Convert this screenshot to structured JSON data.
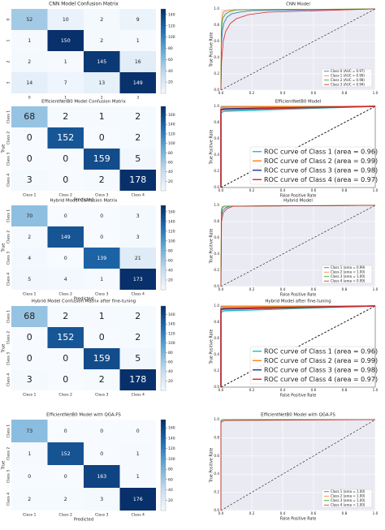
{
  "chart_data": [
    {
      "type": "heatmap",
      "title": "CNN Model Confusion Matrix",
      "xlabel": "",
      "ylabel": "",
      "x_tick_labels": [
        "0",
        "1",
        "2",
        "3"
      ],
      "y_tick_labels": [
        "0",
        "1",
        "2",
        "3"
      ],
      "values": [
        [
          52,
          10,
          2,
          9
        ],
        [
          1,
          150,
          2,
          1
        ],
        [
          2,
          1,
          145,
          16
        ],
        [
          14,
          7,
          13,
          149
        ]
      ],
      "colorbar_ticks": [
        20,
        40,
        60,
        80,
        100,
        120,
        140
      ],
      "color_range": [
        0,
        150
      ]
    },
    {
      "type": "line",
      "title": "CNN Model",
      "xlabel": "",
      "ylabel": "True Positive Rate",
      "x_ticks": [
        "0.0",
        "0.2",
        "0.4",
        "0.6",
        "0.8",
        "1.0"
      ],
      "y_ticks": [
        "0.0",
        "0.2",
        "0.4",
        "0.6",
        "0.8",
        "1.0"
      ],
      "xlim": [
        0,
        1
      ],
      "ylim": [
        0,
        1
      ],
      "grid": true,
      "legend_position": "bottom-right",
      "series": [
        {
          "name": "Class 0 (AUC = 0.97)",
          "color": "#1f77b4",
          "x": [
            0,
            0.003,
            0.01,
            0.02,
            0.04,
            0.07,
            0.12,
            0.2,
            1
          ],
          "y": [
            0,
            0.55,
            0.74,
            0.83,
            0.9,
            0.94,
            0.96,
            0.98,
            1
          ]
        },
        {
          "name": "Class 1 (AUC = 0.99)",
          "color": "#ff7f0e",
          "x": [
            0,
            0.002,
            0.01,
            0.02,
            0.04,
            0.08,
            1
          ],
          "y": [
            0,
            0.8,
            0.93,
            0.97,
            0.98,
            0.99,
            1
          ]
        },
        {
          "name": "Class 2 (AUC = 0.98)",
          "color": "#2ca02c",
          "x": [
            0,
            0.003,
            0.01,
            0.03,
            0.06,
            0.1,
            1
          ],
          "y": [
            0,
            0.7,
            0.88,
            0.94,
            0.97,
            0.99,
            1
          ]
        },
        {
          "name": "Class 3 (AUC = 0.94)",
          "color": "#d62728",
          "x": [
            0,
            0.004,
            0.015,
            0.03,
            0.06,
            0.1,
            0.18,
            0.3,
            1
          ],
          "y": [
            0,
            0.35,
            0.6,
            0.72,
            0.82,
            0.88,
            0.93,
            0.96,
            1
          ]
        }
      ]
    },
    {
      "type": "heatmap",
      "title": "EfficientNetB0 Model Confusion Matrix",
      "xlabel": "Predicted",
      "ylabel": "True",
      "x_tick_labels": [
        "Class 1",
        "Class 2",
        "Class 3",
        "Class 4"
      ],
      "y_tick_labels": [
        "Class 1",
        "Class 2",
        "Class 3",
        "Class 4"
      ],
      "values": [
        [
          68,
          2,
          1,
          2
        ],
        [
          0,
          152,
          0,
          2
        ],
        [
          0,
          0,
          159,
          5
        ],
        [
          3,
          0,
          2,
          178
        ]
      ],
      "colorbar_ticks": [
        20,
        40,
        60,
        80,
        100,
        120,
        140,
        160
      ],
      "color_range": [
        0,
        178
      ]
    },
    {
      "type": "line",
      "title": "EfficientNetB0 Model",
      "xlabel": "False Positive Rate",
      "ylabel": "True Positive Rate",
      "x_ticks": [
        "0.0",
        "0.2",
        "0.4",
        "0.6",
        "0.8",
        "1.0"
      ],
      "y_ticks": [
        "0.0",
        "0.2",
        "0.4",
        "0.6",
        "0.8",
        "1.0"
      ],
      "xlim": [
        0,
        1
      ],
      "ylim": [
        0,
        1
      ],
      "grid": false,
      "legend_position": "bottom-right",
      "series": [
        {
          "name": "ROC curve of Class 1 (area = 0.96)",
          "color": "#17becf",
          "x": [
            0,
            0,
            0.02,
            1
          ],
          "y": [
            0,
            0.92,
            0.94,
            1
          ]
        },
        {
          "name": "ROC curve of Class 2 (area = 0.99)",
          "color": "#ff7f0e",
          "x": [
            0,
            0,
            0.01,
            1
          ],
          "y": [
            0,
            0.98,
            0.99,
            1
          ]
        },
        {
          "name": "ROC curve of Class 3 (area = 0.98)",
          "color": "#1f3a93",
          "x": [
            0,
            0,
            0.015,
            1
          ],
          "y": [
            0,
            0.96,
            0.97,
            1
          ]
        },
        {
          "name": "ROC curve of Class 4 (area = 0.97)",
          "color": "#d62728",
          "x": [
            0,
            0,
            0.02,
            1
          ],
          "y": [
            0,
            0.95,
            0.96,
            1
          ]
        }
      ]
    },
    {
      "type": "heatmap",
      "title": "Hybrid Model Confusion Matrix",
      "xlabel": "Predicted",
      "ylabel": "True",
      "x_tick_labels": [
        "Class 1",
        "Class 2",
        "Class 3",
        "Class 4"
      ],
      "y_tick_labels": [
        "Class 1",
        "Class 2",
        "Class 3",
        "Class 4"
      ],
      "values": [
        [
          70,
          0,
          0,
          3
        ],
        [
          2,
          149,
          0,
          3
        ],
        [
          4,
          0,
          139,
          21
        ],
        [
          5,
          4,
          1,
          173
        ]
      ],
      "colorbar_ticks": [
        20,
        40,
        60,
        80,
        100,
        120,
        140,
        160
      ],
      "color_range": [
        0,
        173
      ]
    },
    {
      "type": "line",
      "title": "Hybrid Model",
      "xlabel": "False Positive Rate",
      "ylabel": "True Positive Rate",
      "x_ticks": [
        "0.0",
        "0.2",
        "0.4",
        "0.6",
        "0.8",
        "1.0"
      ],
      "y_ticks": [
        "0.0",
        "0.2",
        "0.4",
        "0.6",
        "0.8",
        "1.0"
      ],
      "xlim": [
        0,
        1
      ],
      "ylim": [
        0,
        1
      ],
      "grid": true,
      "legend_position": "bottom-right",
      "series": [
        {
          "name": "Class 1 (area = 0.99)",
          "color": "#1f77b4",
          "x": [
            0,
            0.003,
            0.01,
            0.03,
            0.06,
            1
          ],
          "y": [
            0,
            0.85,
            0.93,
            0.97,
            0.99,
            1
          ]
        },
        {
          "name": "Class 2 (area = 1.00)",
          "color": "#ff7f0e",
          "x": [
            0,
            0.002,
            0.01,
            0.02,
            1
          ],
          "y": [
            0,
            0.95,
            0.98,
            0.99,
            1
          ]
        },
        {
          "name": "Class 3 (area = 1.00)",
          "color": "#2ca02c",
          "x": [
            0,
            0.003,
            0.01,
            0.02,
            1
          ],
          "y": [
            0,
            0.9,
            0.97,
            0.99,
            1
          ]
        },
        {
          "name": "Class 4 (area = 0.99)",
          "color": "#d62728",
          "x": [
            0,
            0.004,
            0.015,
            0.04,
            0.08,
            1
          ],
          "y": [
            0,
            0.8,
            0.91,
            0.96,
            0.99,
            1
          ]
        }
      ]
    },
    {
      "type": "heatmap",
      "title": "Hybrid Model Confusion Matrix after fine-tuning",
      "xlabel": "",
      "ylabel": "True",
      "x_tick_labels": [
        "Class 1",
        "Class 2",
        "Class 3",
        "Class 4"
      ],
      "y_tick_labels": [
        "Class 1",
        "Class 2",
        "Class 3",
        "Class 4"
      ],
      "values": [
        [
          68,
          2,
          1,
          2
        ],
        [
          0,
          152,
          0,
          2
        ],
        [
          0,
          0,
          159,
          5
        ],
        [
          3,
          0,
          2,
          178
        ]
      ],
      "colorbar_ticks": [
        20,
        40,
        60,
        80,
        100,
        120,
        140,
        160
      ],
      "color_range": [
        0,
        178
      ]
    },
    {
      "type": "line",
      "title": "Hybrid Model after fine-tuning",
      "xlabel": "False Positive Rate",
      "ylabel": "True Positive Rate",
      "x_ticks": [
        "0.0",
        "0.2",
        "0.4",
        "0.6",
        "0.8",
        "1.0"
      ],
      "y_ticks": [
        "0.0",
        "0.2",
        "0.4",
        "0.6",
        "0.8",
        "1.0"
      ],
      "xlim": [
        0,
        1
      ],
      "ylim": [
        0,
        1
      ],
      "grid": false,
      "legend_position": "bottom-right",
      "series": [
        {
          "name": "ROC curve of Class 1 (area = 0.96)",
          "color": "#17becf",
          "x": [
            0,
            0,
            0.02,
            1
          ],
          "y": [
            0,
            0.92,
            0.94,
            1
          ]
        },
        {
          "name": "ROC curve of Class 2 (area = 0.99)",
          "color": "#ff7f0e",
          "x": [
            0,
            0,
            0.01,
            1
          ],
          "y": [
            0,
            0.98,
            0.99,
            1
          ]
        },
        {
          "name": "ROC curve of Class 3 (area = 0.98)",
          "color": "#1f3a93",
          "x": [
            0,
            0,
            0.015,
            1
          ],
          "y": [
            0,
            0.96,
            0.97,
            1
          ]
        },
        {
          "name": "ROC curve of Class 4 (area = 0.97)",
          "color": "#d62728",
          "x": [
            0,
            0,
            0.02,
            1
          ],
          "y": [
            0,
            0.95,
            0.96,
            1
          ]
        }
      ]
    },
    {
      "type": "heatmap",
      "title": "EfficientNetB0 Model with QGA-FS",
      "xlabel": "Predicted",
      "ylabel": "True",
      "x_tick_labels": [
        "Class 1",
        "Class 2",
        "Class 3",
        "Class 4"
      ],
      "y_tick_labels": [
        "Class 1",
        "Class 2",
        "Class 3",
        "Class 4"
      ],
      "values": [
        [
          73,
          0,
          0,
          0
        ],
        [
          1,
          152,
          0,
          1
        ],
        [
          0,
          0,
          163,
          1
        ],
        [
          2,
          2,
          3,
          176
        ]
      ],
      "colorbar_ticks": [
        20,
        40,
        60,
        80,
        100,
        120,
        140,
        160
      ],
      "color_range": [
        0,
        176
      ]
    },
    {
      "type": "line",
      "title": "EfficientNetB0 Model with QGA-FS",
      "xlabel": "False Positive Rate",
      "ylabel": "True Positive Rate",
      "x_ticks": [
        "0.0",
        "0.2",
        "0.4",
        "0.6",
        "0.8",
        "1.0"
      ],
      "y_ticks": [
        "0.0",
        "0.2",
        "0.4",
        "0.6",
        "0.8",
        "1.0"
      ],
      "xlim": [
        0,
        1
      ],
      "ylim": [
        0,
        1
      ],
      "grid": true,
      "legend_position": "bottom-right",
      "series": [
        {
          "name": "Class 1 (area = 1.00)",
          "color": "#1f77b4",
          "x": [
            0,
            0,
            0.01,
            1
          ],
          "y": [
            0,
            0.99,
            1,
            1
          ]
        },
        {
          "name": "Class 2 (area = 1.00)",
          "color": "#ff7f0e",
          "x": [
            0,
            0,
            0.01,
            1
          ],
          "y": [
            0,
            0.98,
            1,
            1
          ]
        },
        {
          "name": "Class 3 (area = 1.00)",
          "color": "#2ca02c",
          "x": [
            0,
            0,
            0.01,
            1
          ],
          "y": [
            0,
            0.99,
            1,
            1
          ]
        },
        {
          "name": "Class 4 (area = 1.00)",
          "color": "#d62728",
          "x": [
            0,
            0,
            0.02,
            1
          ],
          "y": [
            0,
            0.97,
            0.99,
            1
          ]
        }
      ]
    }
  ]
}
